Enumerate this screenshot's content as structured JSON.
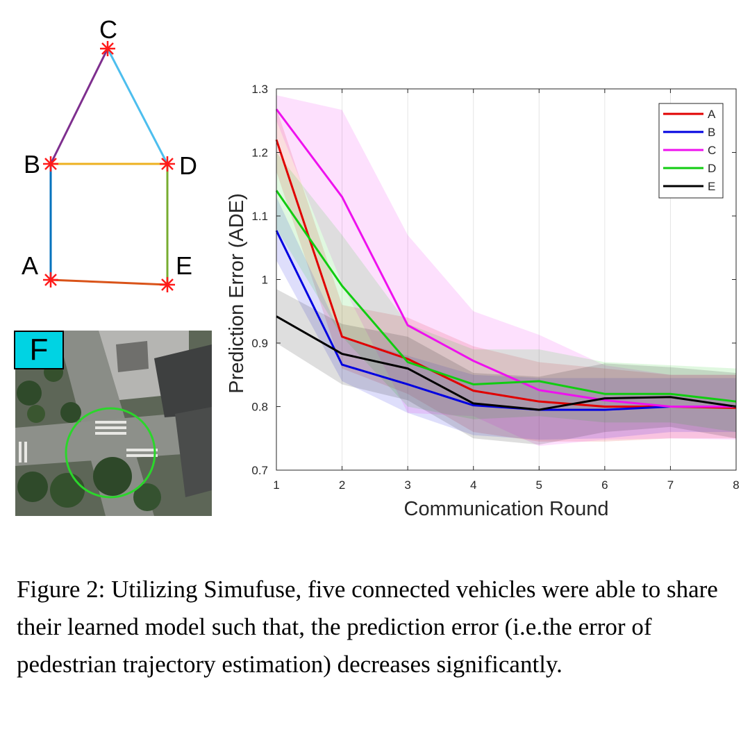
{
  "graph": {
    "nodes": [
      {
        "id": "C",
        "label": "C"
      },
      {
        "id": "B",
        "label": "B"
      },
      {
        "id": "D",
        "label": "D"
      },
      {
        "id": "A",
        "label": "A"
      },
      {
        "id": "E",
        "label": "E"
      }
    ],
    "node_marker_color": "#ff1a1a",
    "edges": [
      {
        "from": "B",
        "to": "C",
        "color": "#7e2f8e"
      },
      {
        "from": "C",
        "to": "D",
        "color": "#4dbeee"
      },
      {
        "from": "B",
        "to": "D",
        "color": "#edb120"
      },
      {
        "from": "A",
        "to": "B",
        "color": "#0072bd"
      },
      {
        "from": "D",
        "to": "E",
        "color": "#77ac30"
      },
      {
        "from": "A",
        "to": "E",
        "color": "#d95319"
      }
    ]
  },
  "aerial_photo": {
    "badge": "F",
    "badge_color": "#00d3e3",
    "highlight_circle_color": "#2bd62b"
  },
  "chart_data": {
    "type": "line",
    "title": "",
    "xlabel": "Communication Round",
    "ylabel": "Prediction Error (ADE)",
    "x": [
      1,
      2,
      3,
      4,
      5,
      6,
      7,
      8
    ],
    "xlim": [
      1,
      8
    ],
    "ylim": [
      0.7,
      1.3
    ],
    "xticks": [
      "1",
      "2",
      "3",
      "4",
      "5",
      "6",
      "7",
      "8"
    ],
    "yticks": [
      "0.7",
      "0.8",
      "0.9",
      "1",
      "1.1",
      "1.2",
      "1.3"
    ],
    "grid": "vertical",
    "legend_position": "top-right",
    "series": [
      {
        "name": "A",
        "color": "#e00000",
        "values": [
          1.22,
          0.91,
          0.875,
          0.825,
          0.808,
          0.8,
          0.8,
          0.798
        ],
        "upper": [
          1.27,
          0.96,
          0.94,
          0.895,
          0.87,
          0.86,
          0.85,
          0.85
        ],
        "lower": [
          1.17,
          0.86,
          0.82,
          0.76,
          0.745,
          0.745,
          0.75,
          0.75
        ]
      },
      {
        "name": "B",
        "color": "#0000e0",
        "values": [
          1.077,
          0.866,
          0.835,
          0.802,
          0.795,
          0.795,
          0.8,
          0.8
        ],
        "upper": [
          1.13,
          0.91,
          0.88,
          0.85,
          0.845,
          0.845,
          0.845,
          0.845
        ],
        "lower": [
          1.03,
          0.84,
          0.79,
          0.755,
          0.748,
          0.75,
          0.76,
          0.76
        ]
      },
      {
        "name": "C",
        "color": "#ee11ee",
        "values": [
          1.268,
          1.13,
          0.928,
          0.872,
          0.826,
          0.81,
          0.8,
          0.8
        ],
        "upper": [
          1.29,
          1.267,
          1.07,
          0.95,
          0.913,
          0.865,
          0.85,
          0.85
        ],
        "lower": [
          1.25,
          0.993,
          0.79,
          0.785,
          0.738,
          0.748,
          0.75,
          0.748
        ]
      },
      {
        "name": "D",
        "color": "#11cc11",
        "values": [
          1.14,
          0.99,
          0.87,
          0.835,
          0.84,
          0.82,
          0.82,
          0.808
        ],
        "upper": [
          1.2,
          1.07,
          0.93,
          0.89,
          0.89,
          0.87,
          0.865,
          0.86
        ],
        "lower": [
          1.08,
          0.91,
          0.8,
          0.78,
          0.785,
          0.775,
          0.775,
          0.76
        ]
      },
      {
        "name": "E",
        "color": "#000000",
        "values": [
          0.942,
          0.883,
          0.86,
          0.805,
          0.795,
          0.813,
          0.815,
          0.8
        ],
        "upper": [
          0.985,
          0.93,
          0.91,
          0.853,
          0.847,
          0.868,
          0.862,
          0.853
        ],
        "lower": [
          0.9,
          0.835,
          0.81,
          0.75,
          0.74,
          0.76,
          0.768,
          0.75
        ]
      }
    ]
  },
  "caption": "Figure 2: Utilizing Simufuse, five connected vehicles were able to share their learned model such that, the prediction error (i.e.the error of pedestrian trajectory estimation) decreases significantly."
}
